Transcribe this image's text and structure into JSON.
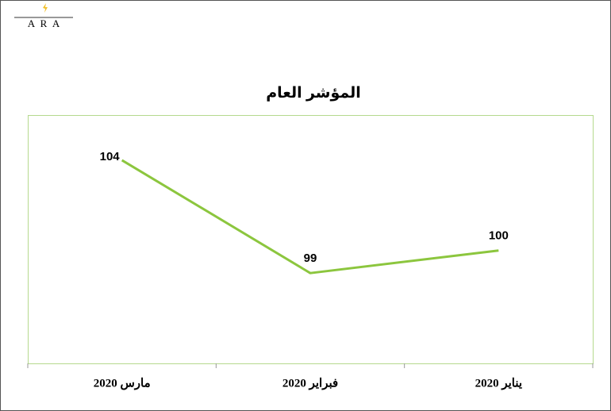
{
  "logo": "A R A",
  "chart_data": {
    "type": "line",
    "title": "المؤشر العام",
    "categories": [
      "مارس 2020",
      "فبراير 2020",
      "يناير 2020"
    ],
    "values": [
      104,
      99,
      100
    ],
    "color": "#8cc63e",
    "ylim": [
      95,
      106
    ]
  }
}
